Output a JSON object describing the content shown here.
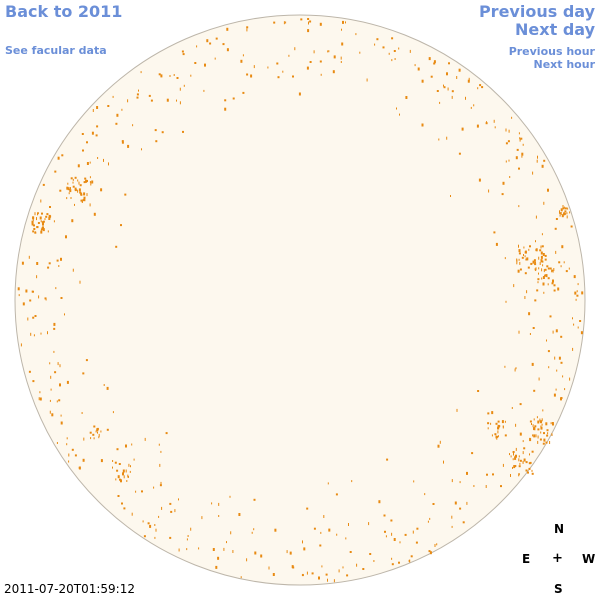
{
  "nav": {
    "back_label": "Back to 2011",
    "facular_label": "See facular data",
    "prev_day_label": "Previous day",
    "next_day_label": "Next day",
    "prev_hour_label": "Previous hour",
    "next_hour_label": "Next hour"
  },
  "compass": {
    "north": "N",
    "east": "E",
    "center": "+",
    "west": "W",
    "south": "S"
  },
  "timestamp": "2011-07-20T01:59:12",
  "colors": {
    "link": "#6b8fd8",
    "disk_fill": "#fdf8ee",
    "disk_stroke": "#bdb6aa",
    "facula": "#e88a12"
  }
}
